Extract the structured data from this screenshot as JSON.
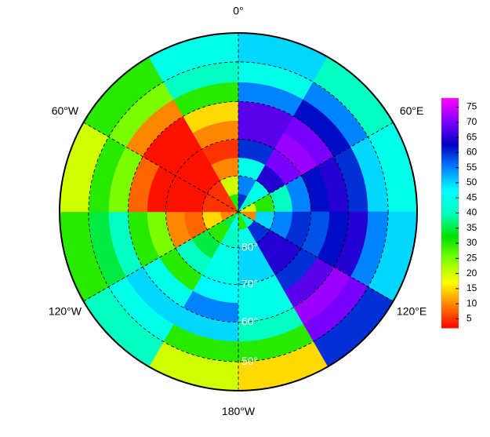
{
  "chart_data": {
    "type": "polar-grid",
    "lat_edges": [
      -90,
      -85,
      -80,
      -75,
      -70,
      -65,
      -60,
      -55,
      -50,
      -43
    ],
    "lon_edges": [
      -180,
      -150,
      -120,
      -90,
      -60,
      -30,
      0,
      30,
      60,
      90,
      120,
      150,
      180
    ],
    "values": [
      [
        45,
        35,
        10,
        5,
        5,
        30,
        60,
        40,
        20,
        10,
        40,
        30
      ],
      [
        40,
        30,
        15,
        5,
        5,
        20,
        55,
        45,
        30,
        50,
        60,
        45
      ],
      [
        45,
        35,
        8,
        3,
        3,
        10,
        45,
        65,
        40,
        55,
        65,
        50
      ],
      [
        45,
        40,
        10,
        3,
        3,
        5,
        60,
        70,
        55,
        60,
        65,
        50
      ],
      [
        48,
        30,
        25,
        3,
        3,
        10,
        68,
        72,
        62,
        58,
        60,
        45
      ],
      [
        55,
        45,
        30,
        8,
        3,
        15,
        68,
        70,
        65,
        62,
        68,
        45
      ],
      [
        50,
        50,
        40,
        25,
        10,
        30,
        55,
        62,
        60,
        65,
        72,
        40
      ],
      [
        30,
        45,
        35,
        30,
        25,
        40,
        45,
        55,
        50,
        55,
        70,
        30
      ],
      [
        20,
        40,
        30,
        20,
        30,
        45,
        50,
        40,
        45,
        50,
        60,
        15
      ]
    ],
    "colormap": [
      "#ff0000",
      "#ff8000",
      "#ffff00",
      "#80ff00",
      "#00e000",
      "#00ffc0",
      "#00ffff",
      "#0080ff",
      "#0000c0",
      "#8000ff",
      "#ff00ff"
    ],
    "clim": [
      2,
      78
    ],
    "cticks": [
      5,
      10,
      15,
      20,
      25,
      30,
      35,
      40,
      45,
      50,
      55,
      60,
      65,
      70,
      75
    ],
    "meridians": [
      {
        "value": 0,
        "label": "0°"
      },
      {
        "value": 60,
        "label": "60°E"
      },
      {
        "value": 120,
        "label": "120°E"
      },
      {
        "value": 180,
        "label": "180°W"
      },
      {
        "value": -120,
        "label": "120°W"
      },
      {
        "value": -60,
        "label": "60°W"
      }
    ],
    "parallels": [
      {
        "value": -80,
        "label": "80°"
      },
      {
        "value": -70,
        "label": "70°"
      },
      {
        "value": -60,
        "label": "60°"
      },
      {
        "value": -50,
        "label": "50°"
      }
    ]
  }
}
